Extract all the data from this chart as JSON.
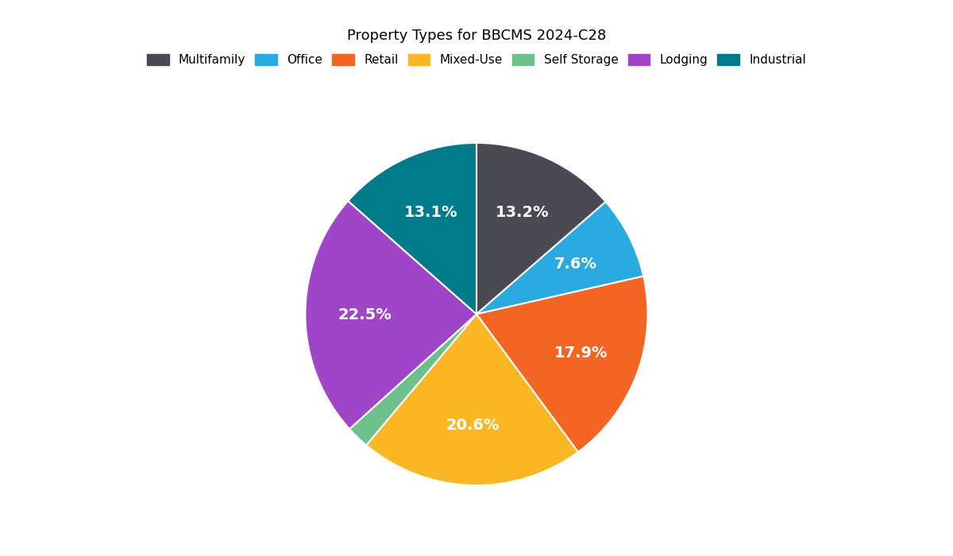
{
  "title": "Property Types for BBCMS 2024-C28",
  "labels": [
    "Multifamily",
    "Office",
    "Retail",
    "Mixed-Use",
    "Self Storage",
    "Lodging",
    "Industrial"
  ],
  "values": [
    13.2,
    7.6,
    17.9,
    20.6,
    2.1,
    22.5,
    13.1
  ],
  "colors": [
    "#4a4a55",
    "#29abe2",
    "#f26522",
    "#fbb623",
    "#6dbf8b",
    "#a044c8",
    "#007b8a"
  ],
  "startangle": 90,
  "pct_fontsize": 14,
  "title_fontsize": 13,
  "legend_fontsize": 11,
  "small_slice_threshold": 3.0
}
